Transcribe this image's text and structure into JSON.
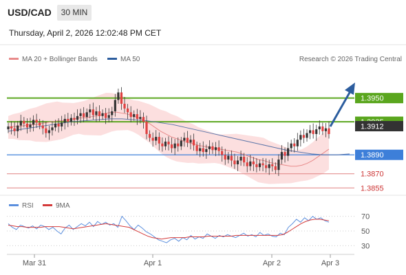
{
  "header": {
    "symbol": "USD/CAD",
    "timeframe": "30 MIN",
    "timestamp": "Thursday, April 2, 2026 12:02:48 PM CET"
  },
  "legend": {
    "bollinger": "MA 20 + Bollinger Bands",
    "ma50": "MA 50",
    "rsi": "RSI",
    "rsi_ma": "9MA",
    "copyright": "Research © 2026 Trading Central"
  },
  "colors": {
    "resistance": "#5aa61e",
    "support_blue": "#3d7fd9",
    "support_red": "#e08080",
    "bollinger_fill": "#fbd9d9",
    "ma20": "#e88a8a",
    "ma50": "#5a74a8",
    "arrow": "#2c5d9e",
    "last_price_bg": "#333333",
    "rsi_line": "#5b8fde",
    "rsi_ma_line": "#d43a3a",
    "candle_up": "#333333",
    "candle_down": "#e04040"
  },
  "chart_data": [
    {
      "type": "candlestick",
      "title": "",
      "ylim": [
        1.3848,
        1.4005
      ],
      "x_ticks": [
        "Mar 31",
        "Apr 1",
        "Apr 2",
        "Apr 3"
      ],
      "last_price": "1.3912",
      "levels": [
        {
          "label": "1.3950",
          "value": 1.395,
          "kind": "resistance"
        },
        {
          "label": "1.3925",
          "value": 1.3925,
          "kind": "resistance"
        },
        {
          "label": "1.3890",
          "value": 1.389,
          "kind": "pivot"
        },
        {
          "label": "1.3870",
          "value": 1.387,
          "kind": "support"
        },
        {
          "label": "1.3855",
          "value": 1.3855,
          "kind": "support"
        }
      ],
      "close_series": [
        1.392,
        1.3918,
        1.3915,
        1.3921,
        1.3926,
        1.3923,
        1.3919,
        1.3922,
        1.3927,
        1.3924,
        1.3921,
        1.3918,
        1.3913,
        1.3916,
        1.3919,
        1.3923,
        1.392,
        1.3924,
        1.3928,
        1.3925,
        1.3929,
        1.3927,
        1.3931,
        1.3934,
        1.393,
        1.3935,
        1.3938,
        1.3932,
        1.3936,
        1.3931,
        1.3934,
        1.3929,
        1.3932,
        1.3936,
        1.3948,
        1.3956,
        1.3944,
        1.3939,
        1.3935,
        1.393,
        1.3933,
        1.3928,
        1.393,
        1.3925,
        1.3912,
        1.3908,
        1.3905,
        1.3909,
        1.3902,
        1.3899,
        1.3904,
        1.3901,
        1.3897,
        1.3902,
        1.3899,
        1.3905,
        1.3908,
        1.3903,
        1.3906,
        1.39,
        1.3894,
        1.3897,
        1.3893,
        1.3896,
        1.3899,
        1.3895,
        1.3898,
        1.3894,
        1.389,
        1.3885,
        1.3889,
        1.3884,
        1.388,
        1.3884,
        1.3888,
        1.3882,
        1.3878,
        1.3883,
        1.388,
        1.3877,
        1.3881,
        1.3879,
        1.3876,
        1.388,
        1.3878,
        1.3874,
        1.3885,
        1.3893,
        1.3889,
        1.3897,
        1.3902,
        1.3899,
        1.3906,
        1.3911,
        1.3908,
        1.3913,
        1.3916,
        1.3912,
        1.3917,
        1.392,
        1.3915,
        1.3918,
        1.3912
      ],
      "ma20_series": [
        1.3919,
        1.392,
        1.392,
        1.3921,
        1.3922,
        1.3922,
        1.3923,
        1.3924,
        1.3925,
        1.3926,
        1.3926,
        1.3927,
        1.3928,
        1.3929,
        1.3929,
        1.393,
        1.3931,
        1.3932,
        1.3934,
        1.3935,
        1.3935,
        1.3934,
        1.3933,
        1.3931,
        1.3929,
        1.3926,
        1.3923,
        1.3919,
        1.3915,
        1.3912,
        1.3909,
        1.3907,
        1.3905,
        1.3903,
        1.3902,
        1.39,
        1.3899,
        1.3898,
        1.3897,
        1.3896,
        1.3895,
        1.3894,
        1.3893,
        1.3891,
        1.3889,
        1.3887,
        1.3885,
        1.3884,
        1.3882,
        1.3881,
        1.388,
        1.3879,
        1.3878,
        1.3878,
        1.3879,
        1.3881,
        1.3884,
        1.3888,
        1.3892,
        1.3896
      ],
      "ma50_series": [
        1.3915,
        1.3917,
        1.3919,
        1.3921,
        1.3923,
        1.3925,
        1.3926,
        1.3927,
        1.3928,
        1.3928,
        1.3927,
        1.3926,
        1.3924,
        1.3922,
        1.3919,
        1.3916,
        1.3913,
        1.391,
        1.3907,
        1.3904,
        1.3901,
        1.3898,
        1.3895,
        1.3893,
        1.3891,
        1.389,
        1.389,
        1.3891
      ]
    },
    {
      "type": "line",
      "title": "RSI",
      "ylim": [
        20,
        80
      ],
      "y_ticks": [
        "70",
        "50",
        "30"
      ],
      "series": [
        {
          "name": "RSI",
          "values": [
            60,
            55,
            52,
            58,
            56,
            54,
            57,
            53,
            58,
            56,
            52,
            55,
            50,
            46,
            54,
            58,
            52,
            56,
            60,
            57,
            62,
            56,
            63,
            59,
            62,
            58,
            60,
            55,
            70,
            64,
            57,
            52,
            58,
            54,
            49,
            46,
            42,
            38,
            36,
            34,
            38,
            40,
            36,
            41,
            38,
            44,
            39,
            42,
            40,
            46,
            43,
            40,
            44,
            42,
            45,
            43,
            41,
            44,
            47,
            43,
            45,
            42,
            48,
            44,
            46,
            43,
            42,
            47,
            45,
            55,
            60,
            66,
            62,
            68,
            64,
            70,
            66,
            68,
            64,
            62
          ]
        },
        {
          "name": "9MA",
          "values": [
            58,
            57,
            56,
            56,
            55,
            55,
            55,
            55,
            56,
            56,
            56,
            56,
            55,
            54,
            53,
            54,
            55,
            56,
            57,
            58,
            59,
            60,
            59,
            58,
            57,
            56,
            55,
            52,
            49,
            46,
            43,
            41,
            40,
            39,
            40,
            41,
            41,
            41,
            41,
            42,
            42,
            42,
            42,
            43,
            43,
            43,
            43,
            43,
            43,
            44,
            44,
            44,
            44,
            44,
            44,
            44,
            44,
            44,
            44,
            45,
            48,
            52,
            56,
            60,
            63,
            65,
            66,
            66,
            65,
            64
          ]
        }
      ]
    }
  ]
}
